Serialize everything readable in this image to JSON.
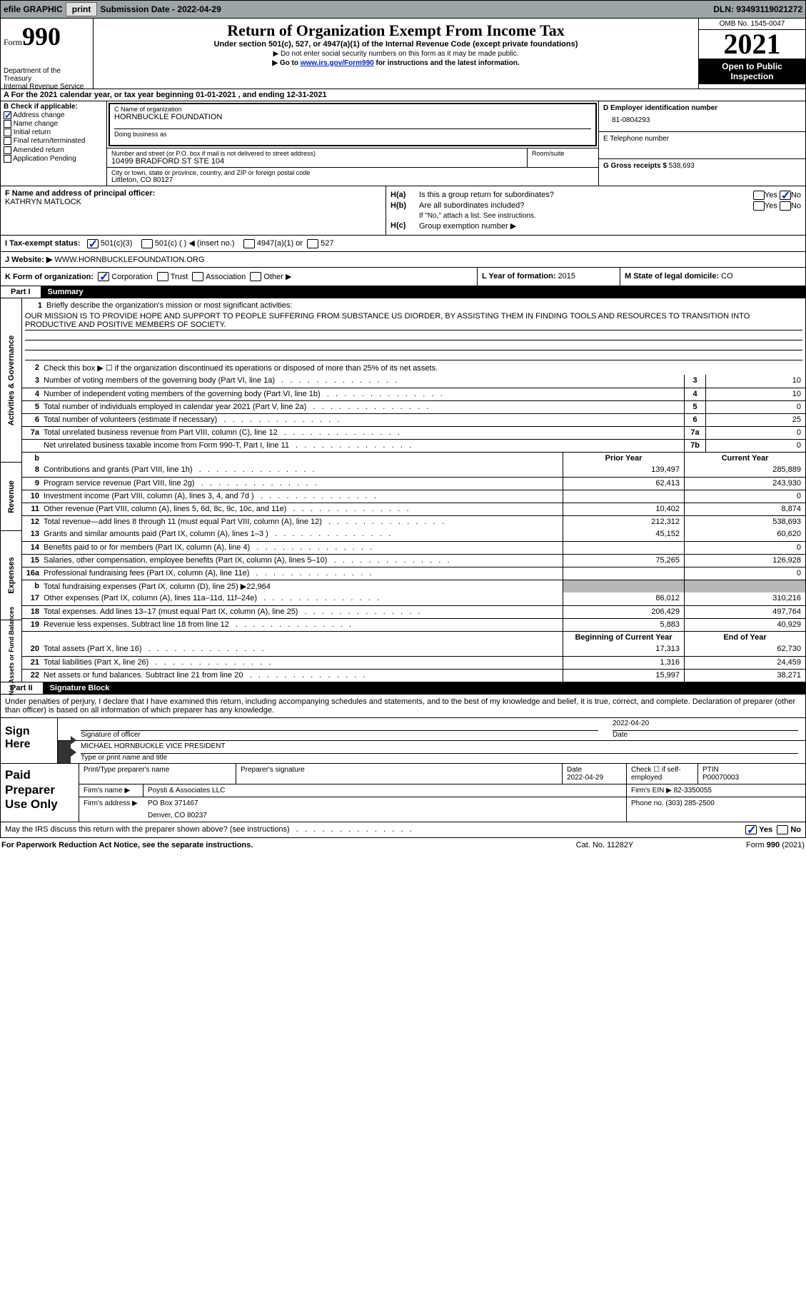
{
  "top": {
    "efile": "efile GRAPHIC",
    "print": "print",
    "sub_label": "Submission Date - ",
    "sub_date": "2022-04-29",
    "dln_label": "DLN: ",
    "dln": "93493119021272"
  },
  "header": {
    "form_word": "Form",
    "form_num": "990",
    "dept": "Department of the Treasury",
    "irs": "Internal Revenue Service",
    "title": "Return of Organization Exempt From Income Tax",
    "sub": "Under section 501(c), 527, or 4947(a)(1) of the Internal Revenue Code (except private foundations)",
    "note1": "▶ Do not enter social security numbers on this form as it may be made public.",
    "note2_pre": "▶ Go to ",
    "note2_link": "www.irs.gov/Form990",
    "note2_post": " for instructions and the latest information.",
    "omb": "OMB No. 1545-0047",
    "year": "2021",
    "open": "Open to Public Inspection"
  },
  "rowA": "A   For the 2021 calendar year, or tax year beginning 01-01-2021    , and ending 12-31-2021",
  "colB": {
    "hdr": "B Check if applicable:",
    "items": [
      "Address change",
      "Name change",
      "Initial return",
      "Final return/terminated",
      "Amended return",
      "Application Pending"
    ],
    "checked": [
      true,
      false,
      false,
      false,
      false,
      false
    ]
  },
  "colC": {
    "name_lbl": "C Name of organization",
    "name": "HORNBUCKLE FOUNDATION",
    "dba_lbl": "Doing business as",
    "addr_lbl": "Number and street (or P.O. box if mail is not delivered to street address)",
    "room_lbl": "Room/suite",
    "addr": "10499 BRADFORD ST STE 104",
    "city_lbl": "City or town, state or province, country, and ZIP or foreign postal code",
    "city": "Littleton, CO  80127"
  },
  "colD": {
    "ein_lbl": "D Employer identification number",
    "ein": "81-0804293",
    "tel_lbl": "E Telephone number",
    "gross_lbl": "G Gross receipts $ ",
    "gross": "538,693"
  },
  "rowF": {
    "lbl": "F  Name and address of principal officer:",
    "name": "KATHRYN MATLOCK"
  },
  "rowH": {
    "ha": "Is this a group return for subordinates?",
    "hb": "Are all subordinates included?",
    "hb_note": "If \"No,\" attach a list. See instructions.",
    "hc": "Group exemption number ▶"
  },
  "rowI": {
    "lbl": "I    Tax-exempt status:",
    "o1": "501(c)(3)",
    "o2": "501(c) (  ) ◀ (insert no.)",
    "o3": "4947(a)(1) or",
    "o4": "527"
  },
  "rowJ": {
    "lbl": "J    Website: ▶  ",
    "val": "WWW.HORNBUCKLEFOUNDATION.ORG"
  },
  "rowK": {
    "lbl": "K Form of organization:",
    "o": [
      "Corporation",
      "Trust",
      "Association",
      "Other ▶"
    ],
    "l_lbl": "L Year of formation: ",
    "l_val": "2015",
    "m_lbl": "M State of legal domicile: ",
    "m_val": "CO"
  },
  "part1": {
    "num": "Part I",
    "title": "Summary"
  },
  "vtabs": [
    "Activities & Governance",
    "Revenue",
    "Expenses",
    "Net Assets or Fund Balances"
  ],
  "mission": {
    "lbl": "Briefly describe the organization's mission or most significant activities:",
    "text": "OUR MISSION IS TO PROVIDE HOPE AND SUPPORT TO PEOPLE SUFFERING FROM SUBSTANCE US DIORDER, BY ASSISTING THEM IN FINDING TOOLS AND RESOURCES TO TRANSITION INTO PRODUCTIVE AND POSITIVE MEMBERS OF SOCIETY."
  },
  "line2": "Check this box ▶ ☐  if the organization discontinued its operations or disposed of more than 25% of its net assets.",
  "lines_single": [
    {
      "n": "3",
      "t": "Number of voting members of the governing body (Part VI, line 1a)",
      "b": "3",
      "v": "10"
    },
    {
      "n": "4",
      "t": "Number of independent voting members of the governing body (Part VI, line 1b)",
      "b": "4",
      "v": "10"
    },
    {
      "n": "5",
      "t": "Total number of individuals employed in calendar year 2021 (Part V, line 2a)",
      "b": "5",
      "v": "0"
    },
    {
      "n": "6",
      "t": "Total number of volunteers (estimate if necessary)",
      "b": "6",
      "v": "25"
    },
    {
      "n": "7a",
      "t": "Total unrelated business revenue from Part VIII, column (C), line 12",
      "b": "7a",
      "v": "0"
    },
    {
      "n": "",
      "t": "Net unrelated business taxable income from Form 990-T, Part I, line 11",
      "b": "7b",
      "v": "0"
    }
  ],
  "col_hdrs": {
    "prior": "Prior Year",
    "current": "Current Year",
    "begin": "Beginning of Current Year",
    "end": "End of Year"
  },
  "lines_rev": [
    {
      "n": "8",
      "t": "Contributions and grants (Part VIII, line 1h)",
      "p": "139,497",
      "c": "285,889"
    },
    {
      "n": "9",
      "t": "Program service revenue (Part VIII, line 2g)",
      "p": "62,413",
      "c": "243,930"
    },
    {
      "n": "10",
      "t": "Investment income (Part VIII, column (A), lines 3, 4, and 7d )",
      "p": "",
      "c": "0"
    },
    {
      "n": "11",
      "t": "Other revenue (Part VIII, column (A), lines 5, 6d, 8c, 9c, 10c, and 11e)",
      "p": "10,402",
      "c": "8,874"
    },
    {
      "n": "12",
      "t": "Total revenue—add lines 8 through 11 (must equal Part VIII, column (A), line 12)",
      "p": "212,312",
      "c": "538,693"
    }
  ],
  "lines_exp": [
    {
      "n": "13",
      "t": "Grants and similar amounts paid (Part IX, column (A), lines 1–3 )",
      "p": "45,152",
      "c": "60,620"
    },
    {
      "n": "14",
      "t": "Benefits paid to or for members (Part IX, column (A), line 4)",
      "p": "",
      "c": "0"
    },
    {
      "n": "15",
      "t": "Salaries, other compensation, employee benefits (Part IX, column (A), lines 5–10)",
      "p": "75,265",
      "c": "126,928"
    },
    {
      "n": "16a",
      "t": "Professional fundraising fees (Part IX, column (A), line 11e)",
      "p": "",
      "c": "0"
    }
  ],
  "line_b": {
    "n": "b",
    "t": "Total fundraising expenses (Part IX, column (D), line 25) ▶",
    "v": "22,964"
  },
  "lines_exp2": [
    {
      "n": "17",
      "t": "Other expenses (Part IX, column (A), lines 11a–11d, 11f–24e)",
      "p": "86,012",
      "c": "310,216"
    },
    {
      "n": "18",
      "t": "Total expenses. Add lines 13–17 (must equal Part IX, column (A), line 25)",
      "p": "206,429",
      "c": "497,764"
    },
    {
      "n": "19",
      "t": "Revenue less expenses. Subtract line 18 from line 12",
      "p": "5,883",
      "c": "40,929"
    }
  ],
  "lines_net": [
    {
      "n": "20",
      "t": "Total assets (Part X, line 16)",
      "p": "17,313",
      "c": "62,730"
    },
    {
      "n": "21",
      "t": "Total liabilities (Part X, line 26)",
      "p": "1,316",
      "c": "24,459"
    },
    {
      "n": "22",
      "t": "Net assets or fund balances. Subtract line 21 from line 20",
      "p": "15,997",
      "c": "38,271"
    }
  ],
  "part2": {
    "num": "Part II",
    "title": "Signature Block"
  },
  "sig_intro": "Under penalties of perjury, I declare that I have examined this return, including accompanying schedules and statements, and to the best of my knowledge and belief, it is true, correct, and complete. Declaration of preparer (other than officer) is based on all information of which preparer has any knowledge.",
  "sign": {
    "here": "Sign Here",
    "sig_lbl": "Signature of officer",
    "date_lbl": "Date",
    "date": "2022-04-20",
    "name": "MICHAEL HORNBUCKLE  VICE PRESIDENT",
    "name_lbl": "Type or print name and title"
  },
  "prep": {
    "title": "Paid Preparer Use Only",
    "r1": {
      "c1": "Print/Type preparer's name",
      "c2": "Preparer's signature",
      "c3l": "Date",
      "c3v": "2022-04-29",
      "c4": "Check ☐ if self-employed",
      "c5l": "PTIN",
      "c5v": "P00070003"
    },
    "r2": {
      "l": "Firm's name     ▶",
      "v": "Poysti & Associates LLC",
      "einl": "Firm's EIN ▶",
      "einv": "82-3350055"
    },
    "r3": {
      "l": "Firm's address ▶",
      "v1": "PO Box 371467",
      "v2": "Denver, CO  80237",
      "phl": "Phone no.",
      "phv": "(303) 285-2500"
    }
  },
  "discuss": "May the IRS discuss this return with the preparer shown above? (see instructions)",
  "footer": {
    "l": "For Paperwork Reduction Act Notice, see the separate instructions.",
    "m": "Cat. No. 11282Y",
    "r": "Form 990 (2021)"
  }
}
